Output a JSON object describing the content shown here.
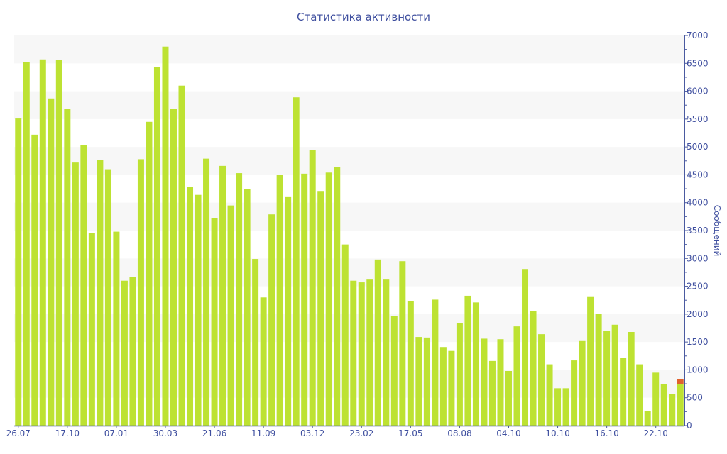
{
  "chart_data": {
    "type": "bar",
    "title": "Статистика активности",
    "xlabel": "",
    "ylabel": "Сообщений",
    "ylim": [
      0,
      7000
    ],
    "yticks": [
      0,
      500,
      1000,
      1500,
      2000,
      2500,
      3000,
      3500,
      4000,
      4500,
      5000,
      5500,
      6000,
      6500,
      7000
    ],
    "x_tick_labels": [
      {
        "bar_index": 0,
        "label": "26.07"
      },
      {
        "bar_index": 6,
        "label": "17.10"
      },
      {
        "bar_index": 12,
        "label": "07.01"
      },
      {
        "bar_index": 18,
        "label": "30.03"
      },
      {
        "bar_index": 24,
        "label": "21.06"
      },
      {
        "bar_index": 30,
        "label": "11.09"
      },
      {
        "bar_index": 36,
        "label": "03.12"
      },
      {
        "bar_index": 42,
        "label": "23.02"
      },
      {
        "bar_index": 48,
        "label": "17.05"
      },
      {
        "bar_index": 54,
        "label": "08.08"
      },
      {
        "bar_index": 60,
        "label": "04.10"
      },
      {
        "bar_index": 66,
        "label": "10.10"
      },
      {
        "bar_index": 72,
        "label": "16.10"
      },
      {
        "bar_index": 78,
        "label": "22.10"
      }
    ],
    "grid": "alternating horizontal bands",
    "y_axis_position": "right",
    "stacked": true,
    "series": [
      {
        "name": "main",
        "color": "#bde232",
        "values": [
          5510,
          6520,
          5220,
          6570,
          5870,
          6560,
          5680,
          4720,
          5030,
          3460,
          4770,
          4600,
          3480,
          2600,
          2670,
          4780,
          5450,
          6430,
          6800,
          5680,
          6100,
          4280,
          4140,
          4790,
          3720,
          4660,
          3950,
          4530,
          4240,
          2990,
          2300,
          3790,
          4500,
          4100,
          5890,
          4520,
          4940,
          4210,
          4540,
          4640,
          3250,
          2600,
          2570,
          2620,
          2980,
          2620,
          1970,
          2950,
          2240,
          1590,
          1580,
          2260,
          1410,
          1340,
          1840,
          2330,
          2210,
          1560,
          1160,
          1550,
          980,
          1780,
          2810,
          2060,
          1640,
          1100,
          670,
          670,
          1170,
          1530,
          2320,
          2000,
          1700,
          1810,
          1220,
          1680,
          1100,
          260,
          950,
          750,
          560,
          740
        ]
      },
      {
        "name": "extra",
        "color": "#e0622e",
        "values": [
          0,
          0,
          0,
          0,
          0,
          0,
          0,
          0,
          0,
          0,
          0,
          0,
          0,
          0,
          0,
          0,
          0,
          0,
          0,
          0,
          0,
          0,
          0,
          0,
          0,
          0,
          0,
          0,
          0,
          0,
          0,
          0,
          0,
          0,
          0,
          0,
          0,
          0,
          0,
          0,
          0,
          0,
          0,
          0,
          0,
          0,
          0,
          0,
          0,
          0,
          0,
          0,
          0,
          0,
          0,
          0,
          0,
          0,
          0,
          0,
          0,
          0,
          0,
          0,
          0,
          0,
          0,
          0,
          0,
          0,
          0,
          0,
          0,
          0,
          0,
          0,
          0,
          0,
          0,
          0,
          0,
          100
        ]
      }
    ]
  }
}
